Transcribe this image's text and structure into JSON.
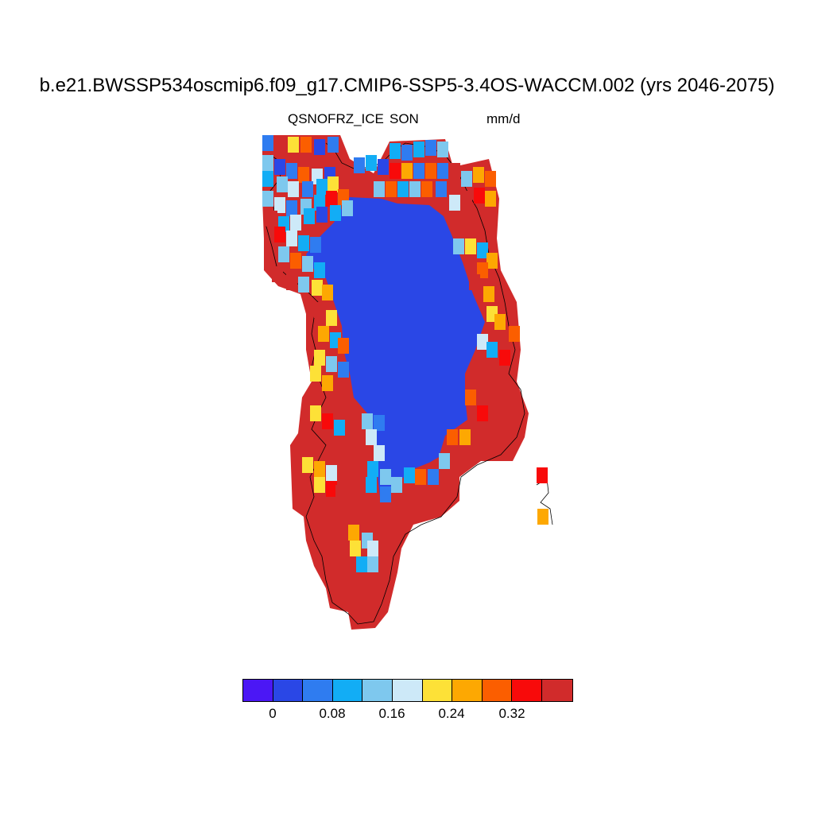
{
  "title": "b.e21.BWSSP534oscmip6.f09_g17.CMIP6-SSP5-3.4OS-WACCM.002 (yrs 2046-2075)",
  "variable": "QSNOFRZ_ICE",
  "season": "SON",
  "units": "mm/d",
  "colorbar": {
    "colors": [
      "#4b17f5",
      "#2a47e6",
      "#2f7cf0",
      "#12adf5",
      "#7ec8ee",
      "#cde9f8",
      "#fde137",
      "#fda802",
      "#fb5e00",
      "#f80a0a",
      "#d12b2b"
    ],
    "labels": [
      "0",
      "0.08",
      "0.16",
      "0.24",
      "0.32"
    ],
    "levels": [
      0,
      0.04,
      0.08,
      0.12,
      0.16,
      0.2,
      0.24,
      0.28,
      0.32,
      0.36
    ]
  },
  "map": {
    "region": "Greenland",
    "colormap_classes": {
      "interior": "#2a47e6",
      "coast": "#d12b2b"
    }
  }
}
